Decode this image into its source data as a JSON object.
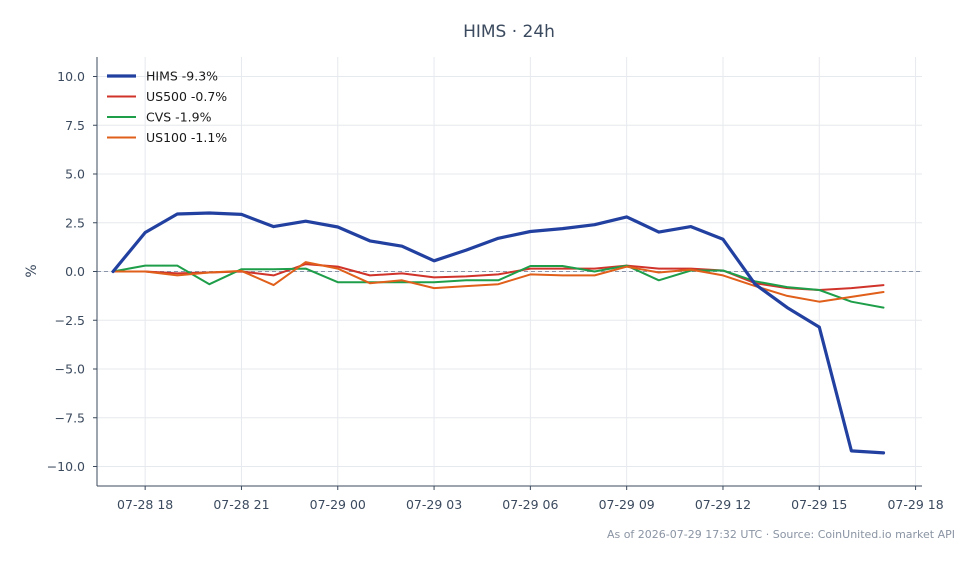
{
  "chart_data": {
    "type": "line",
    "title": "HIMS · 24h",
    "ylabel": "%",
    "xlabel": "",
    "ylim": [
      -11,
      11
    ],
    "yticks": [
      10.0,
      7.5,
      5.0,
      2.5,
      0.0,
      -2.5,
      -5.0,
      -7.5,
      -10.0
    ],
    "ytick_labels": [
      "10.0",
      "7.5",
      "5.0",
      "2.5",
      "0.0",
      "−2.5",
      "−5.0",
      "−7.5",
      "−10.0"
    ],
    "x_start": "07-28 17",
    "xticks": [
      1,
      4,
      7,
      10,
      13,
      16,
      19,
      22,
      25
    ],
    "xtick_labels": [
      "07-28 18",
      "07-28 21",
      "07-29 00",
      "07-29 03",
      "07-29 06",
      "07-29 09",
      "07-29 12",
      "07-29 15",
      "07-29 18"
    ],
    "xlim": [
      -0.5,
      25.2
    ],
    "grid": true,
    "zero_line": true,
    "legend_position": "top-left",
    "series": [
      {
        "name": "HIMS -9.3%",
        "color": "#2240a0",
        "width": 3.2,
        "values": [
          0.0,
          2.0,
          2.95,
          3.0,
          2.93,
          2.3,
          2.58,
          2.28,
          1.57,
          1.3,
          0.55,
          1.1,
          1.7,
          2.05,
          2.2,
          2.4,
          2.8,
          2.02,
          2.3,
          1.65,
          -0.65,
          -1.85,
          -2.85,
          -9.2,
          -9.3
        ]
      },
      {
        "name": "US500 -0.7%",
        "color": "#d0332a",
        "width": 2,
        "values": [
          0.0,
          0.0,
          -0.1,
          -0.05,
          0.0,
          -0.2,
          0.38,
          0.25,
          -0.2,
          -0.1,
          -0.3,
          -0.25,
          -0.15,
          0.15,
          0.15,
          0.15,
          0.3,
          0.15,
          0.15,
          0.05,
          -0.6,
          -0.85,
          -0.95,
          -0.85,
          -0.7
        ]
      },
      {
        "name": "CVS -1.9%",
        "color": "#1f9e4a",
        "width": 2,
        "values": [
          0.0,
          0.3,
          0.3,
          -0.65,
          0.12,
          0.12,
          0.15,
          -0.55,
          -0.55,
          -0.55,
          -0.55,
          -0.45,
          -0.45,
          0.28,
          0.28,
          0.0,
          0.3,
          -0.45,
          0.05,
          0.05,
          -0.5,
          -0.8,
          -0.95,
          -1.55,
          -1.85
        ]
      },
      {
        "name": "US100 -1.1%",
        "color": "#e05f1a",
        "width": 2,
        "values": [
          0.0,
          0.0,
          -0.2,
          -0.05,
          0.03,
          -0.7,
          0.48,
          0.15,
          -0.6,
          -0.45,
          -0.85,
          -0.75,
          -0.65,
          -0.15,
          -0.2,
          -0.2,
          0.25,
          -0.05,
          0.1,
          -0.2,
          -0.75,
          -1.25,
          -1.55,
          -1.3,
          -1.05
        ]
      }
    ]
  },
  "footer": "As of 2026-07-29 17:32 UTC · Source: CoinUnited.io market API"
}
